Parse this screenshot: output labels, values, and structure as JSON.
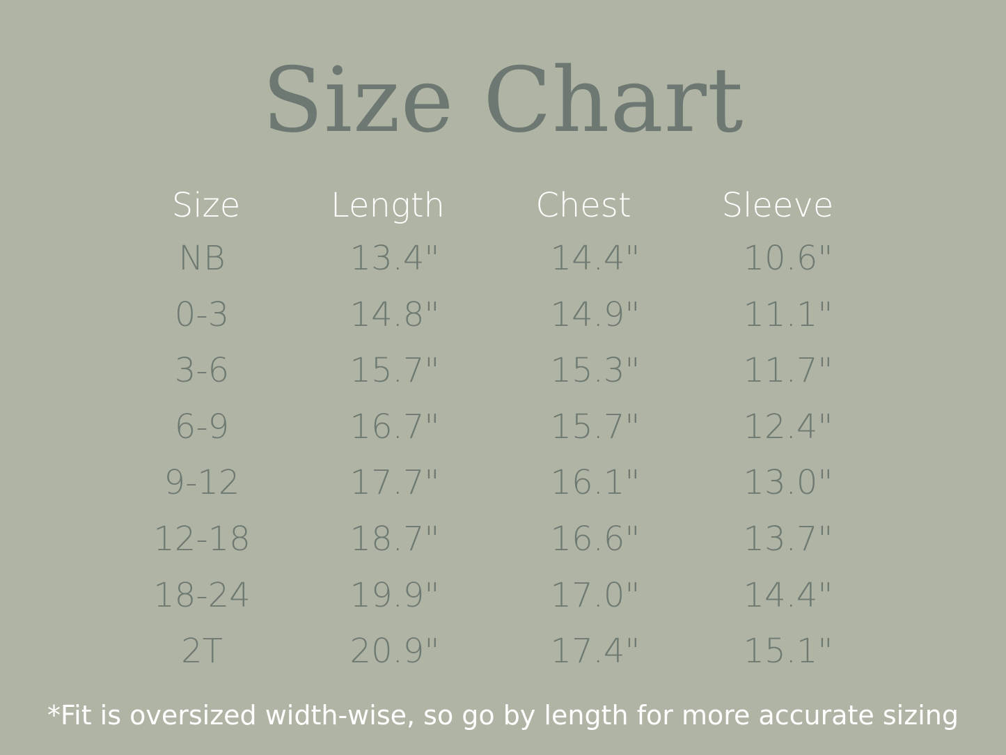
{
  "title": "Size Chart",
  "colors": {
    "background": "#b0b4a4",
    "title": "#6c7871",
    "header": "#ffffff",
    "values": "#6d7971"
  },
  "table": {
    "headers": [
      "Size",
      "Length",
      "Chest",
      "Sleeve"
    ],
    "rows": [
      [
        "NB",
        "13.4\"",
        "14.4\"",
        "10.6\""
      ],
      [
        "0-3",
        "14.8\"",
        "14.9\"",
        "11.1\""
      ],
      [
        "3-6",
        "15.7\"",
        "15.3\"",
        "11.7\""
      ],
      [
        "6-9",
        "16.7\"",
        "15.7\"",
        "12.4\""
      ],
      [
        "9-12",
        "17.7\"",
        "16.1\"",
        "13.0\""
      ],
      [
        "12-18",
        "18.7\"",
        "16.6\"",
        "13.7\""
      ],
      [
        "18-24",
        "19.9\"",
        "17.0\"",
        "14.4\""
      ],
      [
        "2T",
        "20.9\"",
        "17.4\"",
        "15.1\""
      ]
    ]
  },
  "footnote": "*Fit is oversized width-wise, so go by length for more accurate sizing"
}
